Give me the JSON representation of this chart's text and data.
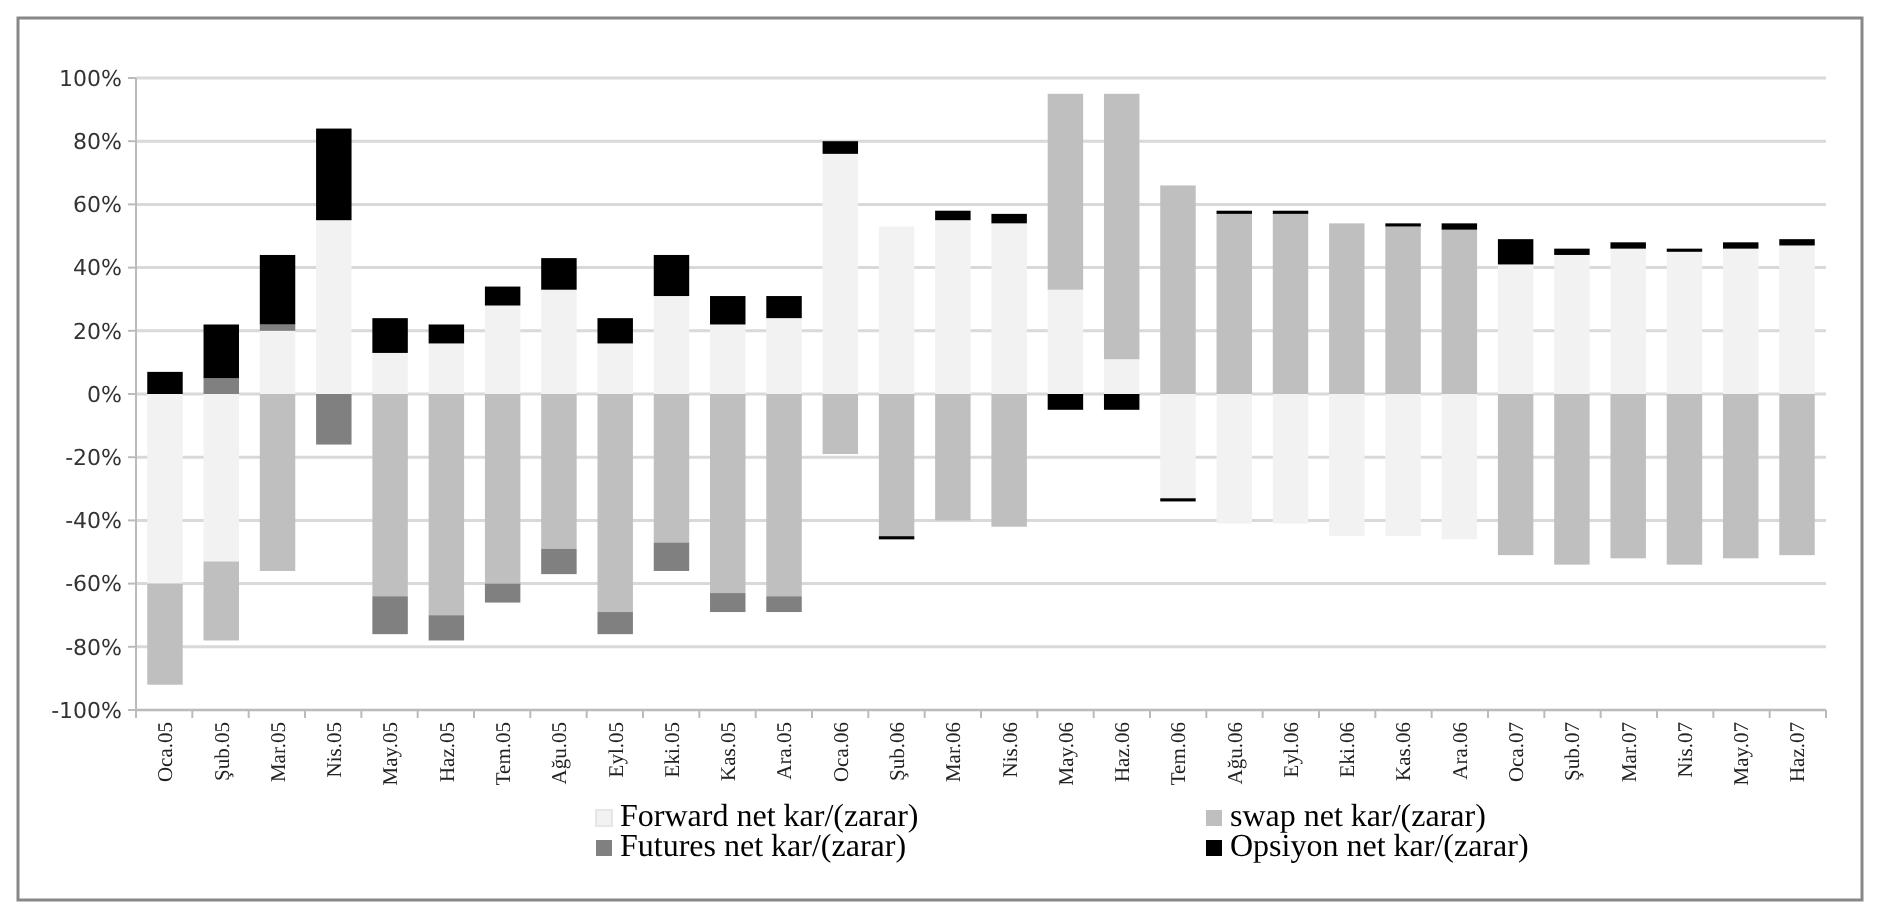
{
  "chart_data": {
    "type": "bar",
    "stacked": true,
    "categories": [
      "Oca.05",
      "Şub.05",
      "Mar.05",
      "Nis.05",
      "May.05",
      "Haz.05",
      "Tem.05",
      "Ağu.05",
      "Eyl.05",
      "Eki.05",
      "Kas.05",
      "Ara.05",
      "Oca.06",
      "Şub.06",
      "Mar.06",
      "Nis.06",
      "May.06",
      "Haz.06",
      "Tem.06",
      "Ağu.06",
      "Eyl.06",
      "Eki.06",
      "Kas.06",
      "Ara.06",
      "Oca.07",
      "Şub.07",
      "Mar.07",
      "Nis.07",
      "May.07",
      "Haz.07"
    ],
    "series": [
      {
        "name": "Forward net kar/(zarar)",
        "color": "#f2f2f2",
        "values": [
          -60,
          -53,
          20,
          55,
          13,
          16,
          28,
          33,
          16,
          31,
          22,
          24,
          76,
          53,
          55,
          54,
          33,
          11,
          -33,
          -41,
          -41,
          -45,
          -45,
          -46,
          41,
          44,
          46,
          45,
          46,
          47
        ]
      },
      {
        "name": "swap net kar/(zarar)",
        "color": "#bfbfbf",
        "values": [
          -32,
          -25,
          -56,
          null,
          -64,
          -70,
          -60,
          -49,
          -69,
          -47,
          -63,
          -64,
          -19,
          -45,
          -40,
          -42,
          62,
          84,
          66,
          57,
          57,
          54,
          53,
          52,
          -51,
          -54,
          -52,
          -54,
          -52,
          -51
        ]
      },
      {
        "name": "Futures net kar/(zarar)",
        "color": "#808080",
        "values": [
          null,
          5,
          2,
          -16,
          -12,
          -8,
          -6,
          -8,
          -7,
          -9,
          -6,
          -5,
          null,
          null,
          null,
          null,
          null,
          null,
          null,
          null,
          null,
          null,
          null,
          null,
          null,
          null,
          null,
          null,
          null,
          null
        ]
      },
      {
        "name": "Opsiyon net kar/(zarar)",
        "color": "#000000",
        "values": [
          7,
          17,
          22,
          29,
          11,
          6,
          6,
          10,
          8,
          13,
          9,
          7,
          4,
          -1,
          3,
          3,
          -5,
          -5,
          -1,
          1,
          1,
          null,
          1,
          2,
          8,
          2,
          2,
          1,
          2,
          2
        ]
      }
    ],
    "ylim": [
      -100,
      100
    ],
    "yticks": [
      {
        "value": -100,
        "label": "-100%"
      },
      {
        "value": -80,
        "label": "-80%"
      },
      {
        "value": -60,
        "label": "-60%"
      },
      {
        "value": -40,
        "label": "-40%"
      },
      {
        "value": -20,
        "label": "-20%"
      },
      {
        "value": 0,
        "label": "0%"
      },
      {
        "value": 20,
        "label": "20%"
      },
      {
        "value": 40,
        "label": "40%"
      },
      {
        "value": 60,
        "label": "60%"
      },
      {
        "value": 80,
        "label": "80%"
      },
      {
        "value": 100,
        "label": "100%"
      }
    ],
    "grid": "y",
    "legend": "bottom"
  }
}
